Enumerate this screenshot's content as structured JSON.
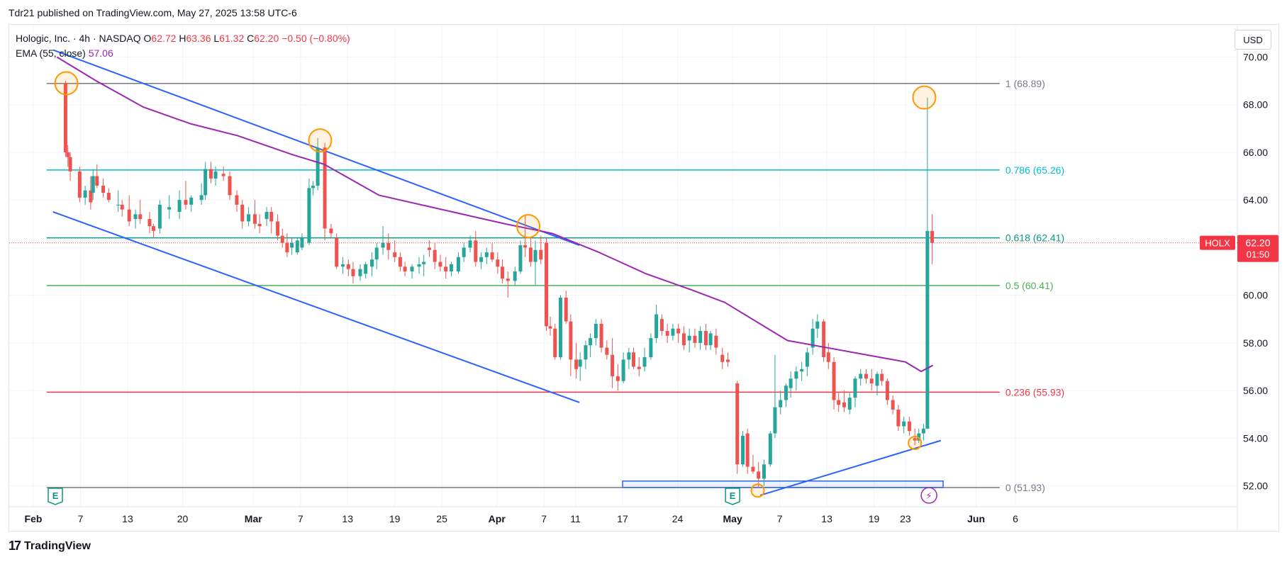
{
  "published": "Tdr21 published on TradingView.com, May 27, 2025 13:58 UTC-6",
  "legend": {
    "symbol": "Hologic, Inc. · 4h · NASDAQ",
    "o_label": "O",
    "o": "62.72",
    "h_label": "H",
    "h": "63.36",
    "l_label": "L",
    "l": "61.32",
    "c_label": "C",
    "c": "62.20",
    "change": "−0.50 (−0.80%)",
    "ema_label": "EMA (55, close)",
    "ema_value": "57.06"
  },
  "currency": "USD",
  "brand": "TradingView",
  "price_tag": {
    "ticker": "HOLX",
    "price": "62.20",
    "countdown": "01:50"
  },
  "colors": {
    "up": "#26a69a",
    "down": "#ef5350",
    "ema": "#9c27b0",
    "trend": "#2962ff",
    "fib_1": "#787b86",
    "fib_786": "#00bcd4",
    "fib_618": "#089981",
    "fib_5": "#4caf50",
    "fib_236": "#f23645",
    "fib_0": "#787b86",
    "circle": "#ff9800",
    "event": "#089981",
    "flash": "#9c27b0"
  },
  "icons": [
    "earnings-icon",
    "earnings-icon",
    "flash-icon"
  ],
  "chart_data": {
    "type": "candlestick",
    "interval": "4h",
    "ylim": [
      51.3,
      71.3
    ],
    "y_ticks": [
      "70.00",
      "68.00",
      "66.00",
      "64.00",
      "62.00",
      "60.00",
      "58.00",
      "56.00",
      "54.00",
      "52.00"
    ],
    "x_ticks": [
      {
        "label": "Feb",
        "day": 0,
        "bold": true
      },
      {
        "label": "7",
        "day": 6
      },
      {
        "label": "13",
        "day": 12
      },
      {
        "label": "20",
        "day": 19
      },
      {
        "label": "Mar",
        "day": 28,
        "bold": true
      },
      {
        "label": "7",
        "day": 34
      },
      {
        "label": "13",
        "day": 40
      },
      {
        "label": "19",
        "day": 46
      },
      {
        "label": "25",
        "day": 52
      },
      {
        "label": "Apr",
        "day": 59,
        "bold": true
      },
      {
        "label": "7",
        "day": 65
      },
      {
        "label": "11",
        "day": 69
      },
      {
        "label": "17",
        "day": 75
      },
      {
        "label": "24",
        "day": 82
      },
      {
        "label": "May",
        "day": 89,
        "bold": true
      },
      {
        "label": "7",
        "day": 95
      },
      {
        "label": "13",
        "day": 101
      },
      {
        "label": "19",
        "day": 107
      },
      {
        "label": "23",
        "day": 111
      },
      {
        "label": "Jun",
        "day": 120,
        "bold": true
      },
      {
        "label": "6",
        "day": 125
      }
    ],
    "fib_levels": [
      {
        "label": "1 (68.89)",
        "value": 68.89,
        "key": "fib_1"
      },
      {
        "label": "0.786 (65.26)",
        "value": 65.26,
        "key": "fib_786"
      },
      {
        "label": "0.618 (62.41)",
        "value": 62.41,
        "key": "fib_618"
      },
      {
        "label": "0.5 (60.41)",
        "value": 60.41,
        "key": "fib_5"
      },
      {
        "label": "0.236 (55.93)",
        "value": 55.93,
        "key": "fib_236"
      },
      {
        "label": "0 (51.93)",
        "value": 51.93,
        "key": "fib_0"
      }
    ],
    "last_price": 62.2,
    "candles": [
      [
        4.1,
        68.9,
        69.0,
        65.8,
        66.0
      ],
      [
        4.4,
        66.0,
        66.3,
        65.4,
        65.8
      ],
      [
        4.7,
        65.8,
        66.0,
        64.8,
        65.2
      ],
      [
        5.9,
        65.2,
        65.4,
        63.9,
        64.1
      ],
      [
        6.6,
        64.1,
        64.6,
        63.8,
        64.4
      ],
      [
        7.3,
        64.4,
        65.0,
        63.6,
        63.9
      ],
      [
        7.6,
        64.3,
        65.3,
        64.0,
        65.0
      ],
      [
        8.1,
        65.0,
        65.5,
        64.5,
        64.6
      ],
      [
        8.9,
        64.6,
        64.9,
        64.1,
        64.3
      ],
      [
        9.6,
        64.3,
        64.5,
        63.9,
        64.0
      ],
      [
        10.8,
        63.8,
        64.4,
        63.5,
        63.8
      ],
      [
        11.3,
        63.8,
        64.0,
        63.3,
        63.6
      ],
      [
        12.2,
        63.6,
        64.2,
        62.9,
        63.1
      ],
      [
        13.0,
        63.2,
        63.6,
        62.8,
        63.4
      ],
      [
        13.6,
        63.4,
        64.0,
        63.0,
        63.2
      ],
      [
        14.8,
        63.2,
        63.5,
        62.6,
        62.9
      ],
      [
        15.3,
        62.9,
        63.0,
        62.4,
        62.7
      ],
      [
        16.1,
        62.8,
        64.0,
        62.6,
        63.8
      ],
      [
        17.3,
        63.6,
        64.2,
        63.2,
        63.7
      ],
      [
        18.6,
        63.5,
        64.4,
        63.2,
        64.0
      ],
      [
        19.4,
        64.0,
        64.8,
        63.6,
        63.8
      ],
      [
        20.1,
        63.8,
        64.2,
        63.5,
        64.1
      ],
      [
        21.4,
        64.0,
        64.7,
        63.8,
        64.2
      ],
      [
        21.9,
        64.2,
        65.6,
        64.0,
        65.3
      ],
      [
        22.6,
        65.3,
        65.6,
        64.7,
        64.9
      ],
      [
        23.2,
        64.9,
        65.4,
        64.6,
        65.2
      ],
      [
        24.2,
        65.1,
        65.4,
        64.8,
        65.0
      ],
      [
        25.0,
        65.0,
        65.2,
        64.0,
        64.2
      ],
      [
        25.9,
        64.2,
        64.4,
        63.5,
        63.8
      ],
      [
        26.6,
        63.8,
        64.0,
        62.8,
        63.1
      ],
      [
        27.4,
        63.1,
        63.7,
        62.9,
        63.4
      ],
      [
        28.2,
        63.4,
        64.0,
        62.8,
        63.0
      ],
      [
        28.8,
        63.0,
        63.4,
        62.6,
        62.9
      ],
      [
        29.7,
        63.2,
        63.7,
        62.9,
        63.5
      ],
      [
        30.3,
        63.5,
        63.7,
        62.6,
        63.1
      ],
      [
        31.1,
        63.1,
        63.4,
        62.3,
        62.5
      ],
      [
        31.7,
        62.5,
        62.8,
        62.0,
        62.2
      ],
      [
        32.3,
        62.2,
        62.6,
        61.6,
        61.8
      ],
      [
        32.9,
        62.0,
        62.4,
        61.7,
        62.2
      ],
      [
        33.6,
        61.8,
        62.4,
        61.7,
        62.3
      ],
      [
        34.2,
        62.0,
        62.6,
        61.9,
        62.4
      ],
      [
        35.1,
        62.2,
        64.9,
        62.1,
        64.5
      ],
      [
        35.6,
        64.5,
        64.8,
        64.2,
        64.6
      ],
      [
        36.2,
        64.6,
        66.6,
        64.4,
        66.2
      ],
      [
        37.1,
        66.2,
        66.4,
        62.3,
        62.8
      ],
      [
        37.9,
        62.8,
        63.0,
        62.4,
        62.6
      ],
      [
        38.6,
        62.4,
        62.6,
        61.1,
        61.2
      ],
      [
        39.4,
        61.2,
        61.6,
        60.9,
        61.3
      ],
      [
        40.1,
        61.3,
        61.5,
        60.8,
        61.1
      ],
      [
        40.7,
        61.1,
        61.4,
        60.5,
        60.8
      ],
      [
        41.6,
        60.8,
        61.3,
        60.6,
        61.1
      ],
      [
        42.3,
        60.9,
        61.4,
        60.7,
        61.3
      ],
      [
        43.1,
        61.2,
        61.8,
        60.8,
        61.5
      ],
      [
        43.7,
        61.5,
        62.2,
        61.1,
        62.0
      ],
      [
        44.5,
        62.0,
        62.9,
        61.7,
        62.2
      ],
      [
        45.2,
        62.2,
        62.6,
        61.5,
        61.9
      ],
      [
        46.0,
        61.8,
        62.3,
        61.4,
        61.6
      ],
      [
        46.7,
        61.6,
        61.8,
        61.0,
        61.2
      ],
      [
        47.3,
        61.2,
        61.4,
        60.8,
        61.0
      ],
      [
        48.2,
        61.0,
        61.3,
        60.7,
        61.2
      ],
      [
        49.1,
        61.2,
        61.6,
        60.9,
        61.3
      ],
      [
        49.7,
        61.3,
        61.7,
        60.8,
        61.4
      ],
      [
        50.4,
        62.0,
        62.3,
        61.6,
        61.9
      ],
      [
        51.1,
        61.9,
        62.2,
        61.1,
        61.4
      ],
      [
        51.8,
        61.4,
        61.7,
        61.0,
        61.2
      ],
      [
        52.5,
        61.2,
        61.6,
        60.7,
        61.0
      ],
      [
        53.2,
        61.0,
        61.4,
        60.8,
        61.3
      ],
      [
        54.1,
        61.0,
        61.8,
        60.9,
        61.6
      ],
      [
        54.8,
        61.6,
        62.2,
        61.4,
        62.0
      ],
      [
        55.6,
        62.0,
        62.5,
        61.8,
        62.3
      ],
      [
        56.3,
        62.3,
        62.7,
        61.2,
        61.4
      ],
      [
        57.0,
        61.4,
        61.8,
        61.1,
        61.6
      ],
      [
        57.7,
        61.6,
        62.0,
        61.3,
        61.8
      ],
      [
        58.4,
        61.8,
        62.2,
        61.4,
        61.5
      ],
      [
        59.1,
        61.5,
        61.8,
        60.9,
        61.2
      ],
      [
        59.7,
        61.2,
        61.5,
        60.5,
        60.7
      ],
      [
        60.4,
        60.7,
        61.0,
        59.9,
        60.6
      ],
      [
        61.3,
        60.6,
        61.2,
        60.4,
        61.0
      ],
      [
        62.0,
        61.0,
        62.3,
        60.9,
        62.1
      ],
      [
        62.6,
        62.1,
        63.4,
        61.6,
        62.0
      ],
      [
        63.3,
        62.0,
        62.4,
        61.2,
        61.4
      ],
      [
        63.9,
        61.4,
        62.3,
        60.4,
        61.9
      ],
      [
        64.6,
        61.9,
        62.5,
        61.3,
        61.5
      ],
      [
        65.3,
        62.2,
        62.4,
        58.5,
        58.7
      ],
      [
        65.8,
        58.7,
        59.1,
        58.3,
        58.6
      ],
      [
        66.4,
        58.6,
        58.8,
        57.3,
        57.4
      ],
      [
        67.1,
        57.4,
        60.0,
        57.3,
        59.9
      ],
      [
        67.8,
        59.9,
        60.2,
        58.8,
        58.9
      ],
      [
        68.4,
        58.9,
        59.2,
        56.6,
        57.3
      ],
      [
        69.1,
        57.3,
        58.0,
        56.5,
        56.9
      ],
      [
        69.6,
        57.0,
        57.6,
        56.4,
        57.3
      ],
      [
        70.3,
        57.3,
        58.1,
        56.9,
        57.9
      ],
      [
        70.9,
        57.9,
        58.4,
        57.4,
        58.2
      ],
      [
        71.6,
        58.2,
        59.0,
        57.9,
        58.8
      ],
      [
        72.3,
        58.8,
        59.0,
        57.6,
        57.8
      ],
      [
        73.0,
        57.8,
        58.1,
        57.3,
        57.5
      ],
      [
        73.7,
        57.5,
        58.2,
        56.1,
        56.6
      ],
      [
        74.4,
        56.6,
        57.1,
        56.0,
        56.4
      ],
      [
        75.1,
        56.4,
        57.6,
        56.3,
        57.3
      ],
      [
        75.8,
        57.3,
        57.8,
        56.9,
        57.6
      ],
      [
        76.4,
        57.6,
        57.8,
        56.9,
        57.0
      ],
      [
        77.1,
        57.0,
        57.4,
        56.6,
        56.9
      ],
      [
        77.8,
        57.0,
        57.8,
        56.8,
        57.4
      ],
      [
        78.6,
        57.4,
        58.4,
        57.3,
        58.2
      ],
      [
        79.3,
        58.2,
        59.6,
        58.0,
        59.2
      ],
      [
        80.0,
        59.0,
        59.2,
        58.3,
        58.5
      ],
      [
        80.7,
        58.5,
        58.8,
        58.0,
        58.3
      ],
      [
        81.4,
        58.3,
        58.8,
        58.1,
        58.6
      ],
      [
        82.1,
        58.6,
        58.8,
        58.0,
        58.4
      ],
      [
        82.8,
        58.4,
        58.7,
        57.7,
        57.9
      ],
      [
        83.5,
        58.1,
        58.6,
        57.6,
        58.3
      ],
      [
        84.2,
        58.3,
        58.6,
        57.8,
        58.0
      ],
      [
        84.9,
        58.0,
        58.7,
        57.7,
        58.5
      ],
      [
        85.6,
        58.5,
        58.8,
        57.7,
        57.9
      ],
      [
        86.2,
        57.9,
        58.5,
        57.7,
        58.4
      ],
      [
        86.9,
        58.3,
        58.6,
        57.5,
        57.8
      ],
      [
        87.7,
        57.5,
        57.8,
        56.9,
        57.2
      ],
      [
        88.4,
        57.3,
        57.6,
        57.0,
        57.2
      ],
      [
        89.6,
        56.3,
        56.4,
        52.5,
        52.9
      ],
      [
        90.3,
        52.9,
        54.3,
        52.8,
        54.1
      ],
      [
        90.9,
        54.2,
        54.4,
        52.5,
        52.8
      ],
      [
        91.6,
        52.8,
        53.3,
        52.5,
        52.6
      ],
      [
        92.3,
        52.6,
        53.0,
        51.9,
        52.3
      ],
      [
        93.0,
        52.3,
        53.1,
        52.0,
        52.9
      ],
      [
        93.8,
        52.9,
        54.3,
        52.8,
        54.2
      ],
      [
        94.4,
        54.2,
        57.5,
        54.0,
        55.3
      ],
      [
        95.1,
        55.3,
        56.0,
        55.0,
        55.6
      ],
      [
        95.8,
        55.6,
        56.3,
        55.3,
        56.2
      ],
      [
        96.4,
        56.1,
        56.8,
        55.7,
        56.5
      ],
      [
        97.1,
        56.5,
        57.0,
        56.0,
        56.8
      ],
      [
        97.8,
        56.8,
        57.2,
        56.4,
        56.9
      ],
      [
        98.5,
        57.0,
        57.8,
        56.6,
        57.6
      ],
      [
        99.2,
        57.8,
        59.0,
        57.5,
        58.6
      ],
      [
        99.8,
        58.6,
        59.2,
        58.2,
        58.9
      ],
      [
        100.6,
        58.9,
        59.0,
        57.2,
        57.4
      ],
      [
        101.2,
        57.6,
        58.0,
        56.9,
        57.2
      ],
      [
        101.9,
        57.2,
        57.4,
        55.2,
        55.6
      ],
      [
        102.5,
        55.6,
        55.9,
        55.1,
        55.4
      ],
      [
        103.2,
        55.5,
        56.0,
        55.1,
        55.3
      ],
      [
        103.9,
        55.2,
        55.9,
        55.0,
        55.7
      ],
      [
        104.6,
        55.7,
        56.6,
        55.3,
        56.5
      ],
      [
        105.3,
        56.5,
        56.9,
        56.2,
        56.7
      ],
      [
        106.0,
        56.7,
        56.9,
        56.3,
        56.5
      ],
      [
        106.7,
        56.5,
        56.9,
        56.0,
        56.3
      ],
      [
        107.4,
        56.2,
        56.8,
        55.8,
        56.7
      ],
      [
        108.0,
        56.7,
        56.9,
        56.2,
        56.4
      ],
      [
        108.7,
        56.4,
        56.5,
        55.4,
        55.6
      ],
      [
        109.4,
        55.6,
        55.8,
        55.0,
        55.2
      ],
      [
        110.1,
        55.2,
        55.4,
        54.3,
        54.5
      ],
      [
        110.8,
        54.5,
        54.9,
        54.2,
        54.7
      ],
      [
        111.5,
        54.7,
        54.9,
        54.1,
        54.3
      ],
      [
        112.2,
        54.0,
        54.4,
        53.7,
        53.9
      ],
      [
        112.7,
        53.9,
        54.4,
        53.8,
        54.2
      ],
      [
        113.3,
        54.2,
        54.6,
        53.9,
        54.4
      ],
      [
        113.8,
        54.4,
        68.3,
        54.4,
        62.7
      ],
      [
        114.4,
        62.7,
        63.4,
        61.3,
        62.2
      ]
    ],
    "ema": [
      [
        3,
        70.0
      ],
      [
        8,
        69.0
      ],
      [
        14,
        67.9
      ],
      [
        20,
        67.2
      ],
      [
        26,
        66.7
      ],
      [
        33,
        65.9
      ],
      [
        37,
        65.5
      ],
      [
        44,
        64.2
      ],
      [
        52,
        63.6
      ],
      [
        60,
        63.0
      ],
      [
        66,
        62.6
      ],
      [
        72,
        61.8
      ],
      [
        78,
        60.9
      ],
      [
        84,
        60.2
      ],
      [
        88,
        59.7
      ],
      [
        92,
        58.9
      ],
      [
        96,
        58.1
      ],
      [
        101,
        57.8
      ],
      [
        106,
        57.5
      ],
      [
        111,
        57.2
      ],
      [
        113,
        56.8
      ],
      [
        114.5,
        57.06
      ]
    ],
    "trendlines": [
      {
        "from": [
          2.5,
          70.3
        ],
        "to": [
          69.5,
          62.1
        ]
      },
      {
        "from": [
          2.5,
          63.5
        ],
        "to": [
          69.5,
          55.5
        ]
      },
      {
        "from": [
          92.5,
          51.6
        ],
        "to": [
          115.5,
          53.9
        ]
      }
    ],
    "highlight_circles": [
      [
        4.2,
        68.9
      ],
      [
        36.5,
        66.5
      ],
      [
        63.0,
        62.9
      ],
      [
        113.4,
        68.3
      ],
      [
        112.2,
        53.8
      ],
      [
        92.2,
        51.8
      ]
    ],
    "support_box": {
      "x0": 75.0,
      "x1": 115.8,
      "y0": 51.93,
      "y1": 52.2
    },
    "events": [
      {
        "icon": "earnings-icon",
        "day": 2.8,
        "glyph": "E"
      },
      {
        "icon": "earnings-icon",
        "day": 89.0,
        "glyph": "E"
      },
      {
        "icon": "flash-icon",
        "day": 114.0,
        "glyph": "⚡"
      }
    ]
  }
}
